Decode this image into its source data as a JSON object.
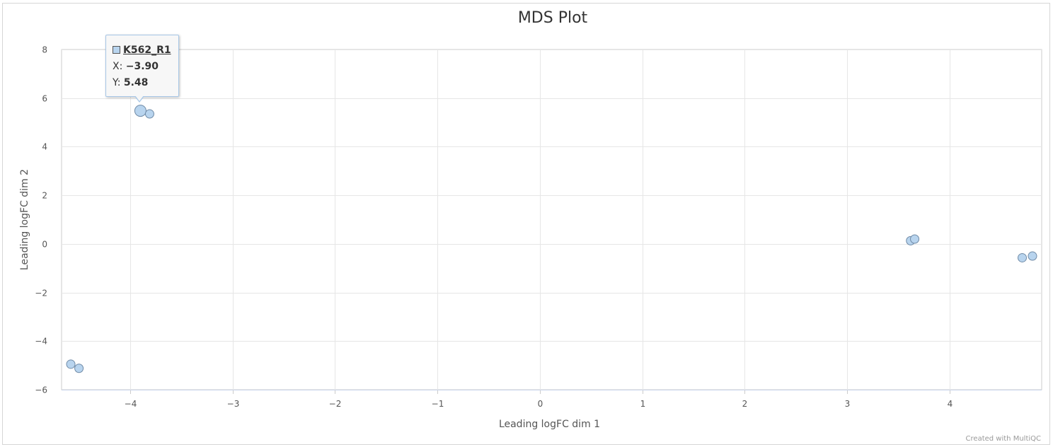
{
  "chart_data": {
    "type": "scatter",
    "title": "MDS Plot",
    "xlabel": "Leading logFC dim 1",
    "ylabel": "Leading logFC dim 2",
    "xlim": [
      -4.67,
      4.9
    ],
    "ylim": [
      -6,
      8
    ],
    "xticks": [
      "−4",
      "−3",
      "−2",
      "−1",
      "0",
      "1",
      "2",
      "3",
      "4"
    ],
    "yticks": [
      "8",
      "6",
      "4",
      "2",
      "0",
      "−2",
      "−4",
      "−6"
    ],
    "grid": true,
    "marker_color": "#b8d4ee",
    "marker_edge_color": "#6f8aa6",
    "points": [
      {
        "x": -3.9,
        "y": 5.48,
        "label": "K562_R1",
        "highlighted": true
      },
      {
        "x": -3.81,
        "y": 5.35
      },
      {
        "x": -4.58,
        "y": -4.95
      },
      {
        "x": -4.5,
        "y": -5.12
      },
      {
        "x": 3.62,
        "y": 0.13
      },
      {
        "x": 3.66,
        "y": 0.2
      },
      {
        "x": 4.71,
        "y": -0.57
      },
      {
        "x": 4.81,
        "y": -0.5
      }
    ]
  },
  "tooltip": {
    "name": "K562_R1",
    "x_label": "X:",
    "x_value": "−3.90",
    "y_label": "Y:",
    "y_value": "5.48"
  },
  "credits": "Created with MultiQC"
}
